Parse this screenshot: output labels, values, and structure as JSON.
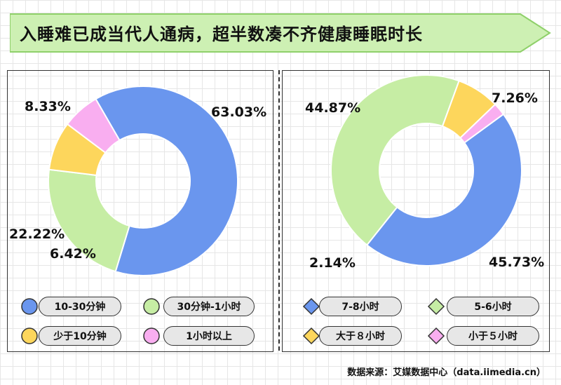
{
  "title": "入睡难已成当代人通病，超半数凑不齐健康睡眠时长",
  "source": "数据来源：艾媒数据中心（data.iimedia.cn）",
  "colors": {
    "blue": "#6a96ee",
    "green": "#c6eda4",
    "yellow": "#fdd65c",
    "pink": "#f9aef0",
    "banner_fill": "#cdf0b3",
    "banner_stroke": "#8fd06a"
  },
  "chart_data": [
    {
      "type": "pie",
      "donut": true,
      "categories": [
        "10-30分钟",
        "30分钟-1小时",
        "少于10分钟",
        "1小时以上"
      ],
      "values": [
        63.03,
        22.22,
        8.33,
        6.42
      ],
      "labels": [
        "63.03%",
        "22.22%",
        "8.33%",
        "6.42%"
      ],
      "colors": [
        "#6a96ee",
        "#c6eda4",
        "#fdd65c",
        "#f9aef0"
      ],
      "legend_marker": "circle",
      "legend_position": "bottom"
    },
    {
      "type": "pie",
      "donut": true,
      "categories": [
        "7-8小时",
        "5-6小时",
        "大于８小时",
        "小于５小时"
      ],
      "values": [
        45.73,
        44.87,
        7.26,
        2.14
      ],
      "labels": [
        "45.73%",
        "44.87%",
        "7.26%",
        "2.14%"
      ],
      "colors": [
        "#6a96ee",
        "#c6eda4",
        "#fdd65c",
        "#f9aef0"
      ],
      "legend_marker": "diamond",
      "legend_position": "bottom"
    }
  ]
}
